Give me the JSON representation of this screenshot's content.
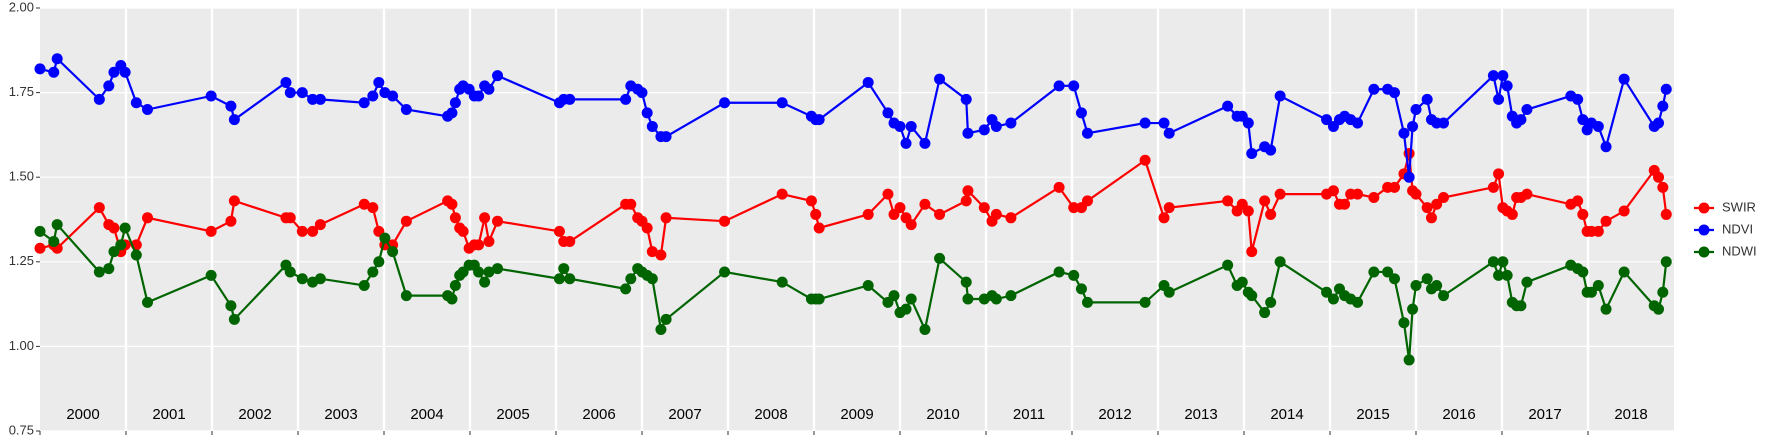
{
  "chart_data": {
    "type": "line",
    "x": [
      2000.0,
      2000.16,
      2000.2,
      2000.69,
      2000.8,
      2000.86,
      2000.94,
      2000.99,
      2001.12,
      2001.25,
      2001.99,
      2002.22,
      2002.26,
      2002.86,
      2002.91,
      2003.05,
      2003.17,
      2003.26,
      2003.77,
      2003.87,
      2003.94,
      2004.01,
      2004.1,
      2004.26,
      2004.74,
      2004.79,
      2004.83,
      2004.88,
      2004.92,
      2004.99,
      2005.05,
      2005.1,
      2005.17,
      2005.22,
      2005.32,
      2006.04,
      2006.09,
      2006.16,
      2006.81,
      2006.87,
      2006.95,
      2007.0,
      2007.06,
      2007.12,
      2007.22,
      2007.28,
      2007.96,
      2008.63,
      2008.97,
      2009.02,
      2009.06,
      2009.63,
      2009.86,
      2009.93,
      2010.0,
      2010.07,
      2010.13,
      2010.29,
      2010.46,
      2010.77,
      2010.79,
      2010.98,
      2011.07,
      2011.12,
      2011.29,
      2011.85,
      2012.02,
      2012.11,
      2012.18,
      2012.85,
      2013.07,
      2013.13,
      2013.81,
      2013.92,
      2013.98,
      2014.05,
      2014.09,
      2014.24,
      2014.31,
      2014.42,
      2014.96,
      2015.04,
      2015.11,
      2015.17,
      2015.24,
      2015.32,
      2015.51,
      2015.67,
      2015.75,
      2015.86,
      2015.92,
      2015.96,
      2016.0,
      2016.13,
      2016.18,
      2016.24,
      2016.32,
      2016.9,
      2016.96,
      2017.01,
      2017.06,
      2017.12,
      2017.17,
      2017.22,
      2017.29,
      2017.8,
      2017.88,
      2017.94,
      2017.99,
      2018.04,
      2018.12,
      2018.21,
      2018.42,
      2018.77,
      2018.82,
      2018.87,
      2018.91
    ],
    "series": [
      {
        "name": "SWIR",
        "color": "#ff0000",
        "values": [
          1.29,
          1.3,
          1.29,
          1.41,
          1.36,
          1.35,
          1.28,
          1.3,
          1.3,
          1.38,
          1.34,
          1.37,
          1.43,
          1.38,
          1.38,
          1.34,
          1.34,
          1.36,
          1.42,
          1.41,
          1.34,
          1.3,
          1.3,
          1.37,
          1.43,
          1.42,
          1.38,
          1.35,
          1.34,
          1.29,
          1.3,
          1.3,
          1.38,
          1.31,
          1.37,
          1.34,
          1.31,
          1.31,
          1.42,
          1.42,
          1.38,
          1.37,
          1.35,
          1.28,
          1.27,
          1.38,
          1.37,
          1.45,
          1.43,
          1.39,
          1.35,
          1.39,
          1.45,
          1.39,
          1.41,
          1.38,
          1.36,
          1.42,
          1.39,
          1.43,
          1.46,
          1.41,
          1.37,
          1.39,
          1.38,
          1.47,
          1.41,
          1.41,
          1.43,
          1.55,
          1.38,
          1.41,
          1.43,
          1.4,
          1.42,
          1.4,
          1.28,
          1.43,
          1.39,
          1.45,
          1.45,
          1.46,
          1.42,
          1.42,
          1.45,
          1.45,
          1.44,
          1.47,
          1.47,
          1.51,
          1.57,
          1.46,
          1.45,
          1.41,
          1.38,
          1.42,
          1.44,
          1.47,
          1.51,
          1.41,
          1.4,
          1.39,
          1.44,
          1.44,
          1.45,
          1.42,
          1.43,
          1.39,
          1.34,
          1.34,
          1.34,
          1.37,
          1.4,
          1.52,
          1.5,
          1.47,
          1.39
        ]
      },
      {
        "name": "NDVI",
        "color": "#0000ff",
        "values": [
          1.82,
          1.81,
          1.85,
          1.73,
          1.77,
          1.81,
          1.83,
          1.81,
          1.72,
          1.7,
          1.74,
          1.71,
          1.67,
          1.78,
          1.75,
          1.75,
          1.73,
          1.73,
          1.72,
          1.74,
          1.78,
          1.75,
          1.74,
          1.7,
          1.68,
          1.69,
          1.72,
          1.76,
          1.77,
          1.76,
          1.74,
          1.74,
          1.77,
          1.76,
          1.8,
          1.72,
          1.73,
          1.73,
          1.73,
          1.77,
          1.76,
          1.75,
          1.69,
          1.65,
          1.62,
          1.62,
          1.72,
          1.72,
          1.68,
          1.67,
          1.67,
          1.78,
          1.69,
          1.66,
          1.65,
          1.6,
          1.65,
          1.6,
          1.79,
          1.73,
          1.63,
          1.64,
          1.67,
          1.65,
          1.66,
          1.77,
          1.77,
          1.69,
          1.63,
          1.66,
          1.66,
          1.63,
          1.71,
          1.68,
          1.68,
          1.66,
          1.57,
          1.59,
          1.58,
          1.74,
          1.67,
          1.65,
          1.67,
          1.68,
          1.67,
          1.66,
          1.76,
          1.76,
          1.75,
          1.63,
          1.5,
          1.65,
          1.7,
          1.73,
          1.67,
          1.66,
          1.66,
          1.8,
          1.73,
          1.8,
          1.77,
          1.68,
          1.66,
          1.67,
          1.7,
          1.74,
          1.73,
          1.67,
          1.64,
          1.66,
          1.65,
          1.59,
          1.79,
          1.65,
          1.66,
          1.71,
          1.76
        ]
      },
      {
        "name": "NDWI",
        "color": "#006400",
        "values": [
          1.34,
          1.31,
          1.36,
          1.22,
          1.23,
          1.28,
          1.3,
          1.35,
          1.27,
          1.13,
          1.21,
          1.12,
          1.08,
          1.24,
          1.22,
          1.2,
          1.19,
          1.2,
          1.18,
          1.22,
          1.25,
          1.32,
          1.28,
          1.15,
          1.15,
          1.14,
          1.18,
          1.21,
          1.22,
          1.24,
          1.24,
          1.22,
          1.19,
          1.22,
          1.23,
          1.2,
          1.23,
          1.2,
          1.17,
          1.2,
          1.23,
          1.22,
          1.21,
          1.2,
          1.05,
          1.08,
          1.22,
          1.19,
          1.14,
          1.14,
          1.14,
          1.18,
          1.13,
          1.15,
          1.1,
          1.11,
          1.14,
          1.05,
          1.26,
          1.19,
          1.14,
          1.14,
          1.15,
          1.14,
          1.15,
          1.22,
          1.21,
          1.17,
          1.13,
          1.13,
          1.18,
          1.16,
          1.24,
          1.18,
          1.19,
          1.16,
          1.15,
          1.1,
          1.13,
          1.25,
          1.16,
          1.14,
          1.17,
          1.15,
          1.14,
          1.13,
          1.22,
          1.22,
          1.2,
          1.07,
          0.96,
          1.11,
          1.18,
          1.2,
          1.17,
          1.18,
          1.15,
          1.25,
          1.21,
          1.25,
          1.21,
          1.13,
          1.12,
          1.12,
          1.19,
          1.24,
          1.23,
          1.22,
          1.16,
          1.16,
          1.18,
          1.11,
          1.22,
          1.12,
          1.11,
          1.16,
          1.25
        ]
      }
    ],
    "xlim": [
      2000,
      2019
    ],
    "xticks": [
      {
        "value": 2000.5,
        "label": "2000"
      },
      {
        "value": 2001.5,
        "label": "2001"
      },
      {
        "value": 2002.5,
        "label": "2002"
      },
      {
        "value": 2003.5,
        "label": "2003"
      },
      {
        "value": 2004.5,
        "label": "2004"
      },
      {
        "value": 2005.5,
        "label": "2005"
      },
      {
        "value": 2006.5,
        "label": "2006"
      },
      {
        "value": 2007.5,
        "label": "2007"
      },
      {
        "value": 2008.5,
        "label": "2008"
      },
      {
        "value": 2009.5,
        "label": "2009"
      },
      {
        "value": 2010.5,
        "label": "2010"
      },
      {
        "value": 2011.5,
        "label": "2011"
      },
      {
        "value": 2012.5,
        "label": "2012"
      },
      {
        "value": 2013.5,
        "label": "2013"
      },
      {
        "value": 2014.5,
        "label": "2014"
      },
      {
        "value": 2015.5,
        "label": "2015"
      },
      {
        "value": 2016.5,
        "label": "2016"
      },
      {
        "value": 2017.5,
        "label": "2017"
      },
      {
        "value": 2018.5,
        "label": "2018"
      }
    ],
    "ylim": [
      0.75,
      2.0
    ],
    "yticks": [
      0.75,
      {
        "value": 1.0,
        "label": "1.00"
      },
      1.25,
      {
        "value": 1.5,
        "label": "1.50"
      },
      1.75,
      {
        "value": 2.0,
        "label": "2.00"
      }
    ],
    "grid": true,
    "legend": "right"
  }
}
